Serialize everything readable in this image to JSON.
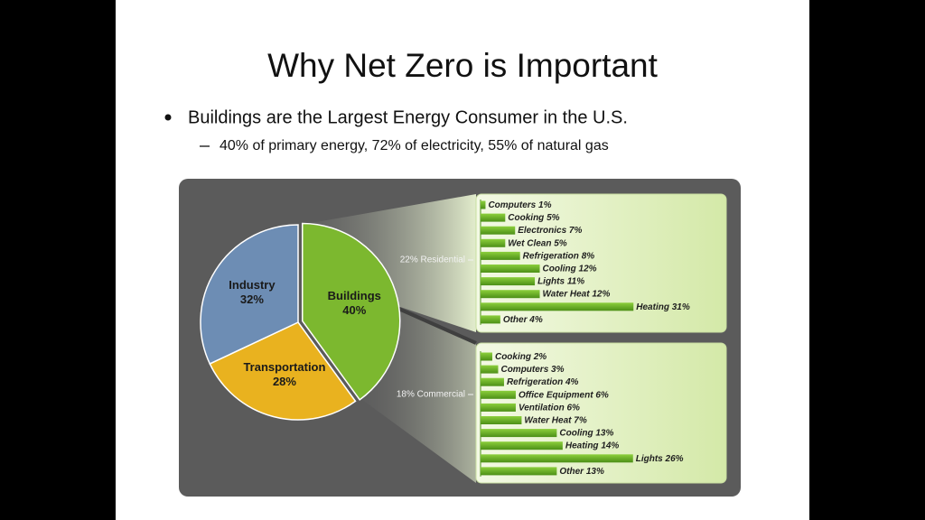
{
  "slide": {
    "title": "Why Net Zero is Important",
    "bullets": [
      {
        "text": "Buildings are the Largest Energy Consumer in the U.S.",
        "sub": [
          "40% of primary energy, 72% of electricity, 55% of natural gas"
        ]
      }
    ]
  },
  "chart_data": [
    {
      "type": "pie",
      "categories": [
        "Buildings",
        "Transportation",
        "Industry"
      ],
      "values": [
        40,
        28,
        32
      ],
      "value_labels": [
        "40%",
        "28%",
        "32%"
      ],
      "colors": [
        "#7cb82f",
        "#e9b21f",
        "#6d8db4"
      ]
    },
    {
      "type": "hbar",
      "title": "22% Residential",
      "categories": [
        "Computers",
        "Cooking",
        "Electronics",
        "Wet Clean",
        "Refrigeration",
        "Cooling",
        "Lights",
        "Water Heat",
        "Heating",
        "Other"
      ],
      "values": [
        1,
        5,
        7,
        5,
        8,
        12,
        11,
        12,
        31,
        4
      ],
      "value_labels": [
        "1%",
        "5%",
        "7%",
        "5%",
        "8%",
        "12%",
        "11%",
        "12%",
        "31%",
        "4%"
      ],
      "color": "#5ea51f",
      "xlim": [
        0,
        31.5
      ]
    },
    {
      "type": "hbar",
      "title": "18% Commercial",
      "categories": [
        "Cooking",
        "Computers",
        "Refrigeration",
        "Office Equipment",
        "Ventilation",
        "Water Heat",
        "Cooling",
        "Heating",
        "Lights",
        "Other"
      ],
      "values": [
        2,
        3,
        4,
        6,
        6,
        7,
        13,
        14,
        26,
        13
      ],
      "value_labels": [
        "2%",
        "3%",
        "4%",
        "6%",
        "6%",
        "7%",
        "13%",
        "14%",
        "26%",
        "13%"
      ],
      "color": "#5ea51f",
      "xlim": [
        0,
        26.5
      ]
    }
  ]
}
